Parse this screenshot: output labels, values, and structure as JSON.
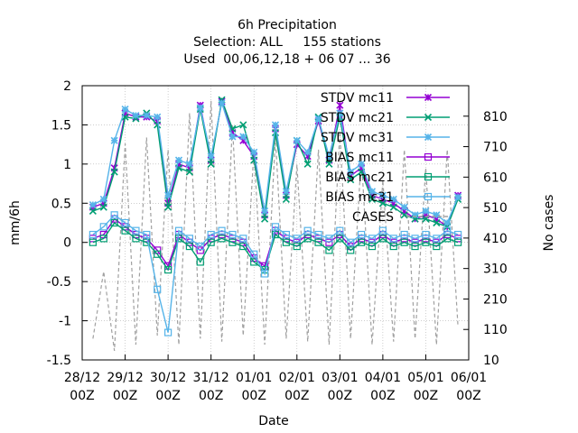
{
  "chart_data": {
    "type": "line",
    "title_lines": [
      "6h Precipitation",
      "Selection: ALL     155 stations",
      "Used  00,06,12,18 + 06 07 ... 36"
    ],
    "xlabel": "Date",
    "ylabel": "mm/6h",
    "y2label": "No cases",
    "x_ticks": [
      {
        "top": "28/12",
        "bottom": "00Z"
      },
      {
        "top": "29/12",
        "bottom": "00Z"
      },
      {
        "top": "30/12",
        "bottom": "00Z"
      },
      {
        "top": "31/12",
        "bottom": "00Z"
      },
      {
        "top": "01/01",
        "bottom": "00Z"
      },
      {
        "top": "02/01",
        "bottom": "00Z"
      },
      {
        "top": "03/01",
        "bottom": "00Z"
      },
      {
        "top": "04/01",
        "bottom": "00Z"
      },
      {
        "top": "05/01",
        "bottom": "00Z"
      },
      {
        "top": "06/01",
        "bottom": "00Z"
      }
    ],
    "y_ticks": [
      "-1.5",
      "-1",
      "-0.5",
      "0",
      "0.5",
      "1",
      "1.5",
      "2"
    ],
    "y2_ticks": [
      "10",
      "110",
      "210",
      "310",
      "410",
      "510",
      "610",
      "710",
      "810"
    ],
    "ylim": [
      -1.5,
      2
    ],
    "y2lim": [
      10,
      910
    ],
    "xlim": [
      0,
      9
    ],
    "grid": true,
    "legend_position": "top-right",
    "colors": {
      "mc11": "#9400d3",
      "mc21": "#009e73",
      "mc31": "#56b4e9",
      "cases": "#a0a0a0"
    },
    "series": [
      {
        "name": "STDV mc11",
        "key": "mc11",
        "marker": "star",
        "axis": "y",
        "x": [
          0.25,
          0.5,
          0.75,
          1.0,
          1.25,
          1.5,
          1.75,
          2.0,
          2.25,
          2.5,
          2.75,
          3.0,
          3.25,
          3.5,
          3.75,
          4.0,
          4.25,
          4.5,
          4.75,
          5.0,
          5.25,
          5.5,
          5.75,
          6.0,
          6.25,
          6.5,
          6.75,
          7.0,
          7.25,
          7.5,
          7.75,
          8.0,
          8.25,
          8.5,
          8.75
        ],
        "y": [
          0.45,
          0.5,
          0.95,
          1.65,
          1.6,
          1.6,
          1.55,
          0.5,
          1.0,
          0.95,
          1.75,
          1.05,
          1.8,
          1.4,
          1.3,
          1.1,
          0.35,
          1.45,
          0.6,
          1.25,
          1.1,
          1.55,
          1.05,
          1.75,
          0.85,
          0.95,
          0.6,
          0.55,
          0.5,
          0.4,
          0.3,
          0.35,
          0.3,
          0.2,
          0.6
        ]
      },
      {
        "name": "STDV mc21",
        "key": "mc21",
        "marker": "x",
        "axis": "y",
        "x": [
          0.25,
          0.5,
          0.75,
          1.0,
          1.25,
          1.5,
          1.75,
          2.0,
          2.25,
          2.5,
          2.75,
          3.0,
          3.25,
          3.5,
          3.75,
          4.0,
          4.25,
          4.5,
          4.75,
          5.0,
          5.25,
          5.5,
          5.75,
          6.0,
          6.25,
          6.5,
          6.75,
          7.0,
          7.25,
          7.5,
          7.75,
          8.0,
          8.25,
          8.5,
          8.75
        ],
        "y": [
          0.4,
          0.45,
          0.9,
          1.6,
          1.58,
          1.65,
          1.5,
          0.45,
          0.95,
          0.9,
          1.7,
          1.0,
          1.82,
          1.45,
          1.5,
          1.05,
          0.3,
          1.4,
          0.55,
          1.3,
          1.0,
          1.6,
          1.0,
          1.6,
          0.8,
          0.9,
          0.55,
          0.5,
          0.45,
          0.35,
          0.3,
          0.3,
          0.25,
          0.2,
          0.55
        ]
      },
      {
        "name": "STDV mc31",
        "key": "mc31",
        "marker": "asterisk",
        "axis": "y",
        "x": [
          0.25,
          0.5,
          0.75,
          1.0,
          1.25,
          1.5,
          1.75,
          2.0,
          2.25,
          2.5,
          2.75,
          3.0,
          3.25,
          3.5,
          3.75,
          4.0,
          4.25,
          4.5,
          4.75,
          5.0,
          5.25,
          5.5,
          5.75,
          6.0,
          6.25,
          6.5,
          6.75,
          7.0,
          7.25,
          7.5,
          7.75,
          8.0,
          8.25,
          8.5,
          8.75
        ],
        "y": [
          0.48,
          0.55,
          1.3,
          1.7,
          1.62,
          1.62,
          1.6,
          0.6,
          1.05,
          1.0,
          1.72,
          1.1,
          1.78,
          1.35,
          1.35,
          1.15,
          0.4,
          1.5,
          0.65,
          1.3,
          1.15,
          1.58,
          1.1,
          1.65,
          0.9,
          1.0,
          0.65,
          0.6,
          0.55,
          0.45,
          0.35,
          0.4,
          0.35,
          0.25,
          0.58
        ]
      },
      {
        "name": "BIAS mc11",
        "key": "mc11",
        "marker": "square",
        "axis": "y",
        "x": [
          0.25,
          0.5,
          0.75,
          1.0,
          1.25,
          1.5,
          1.75,
          2.0,
          2.25,
          2.5,
          2.75,
          3.0,
          3.25,
          3.5,
          3.75,
          4.0,
          4.25,
          4.5,
          4.75,
          5.0,
          5.25,
          5.5,
          5.75,
          6.0,
          6.25,
          6.5,
          6.75,
          7.0,
          7.25,
          7.5,
          7.75,
          8.0,
          8.25,
          8.5,
          8.75
        ],
        "y": [
          0.05,
          0.1,
          0.3,
          0.2,
          0.1,
          0.05,
          -0.1,
          -0.3,
          0.1,
          0.0,
          -0.1,
          0.05,
          0.1,
          0.05,
          0.0,
          -0.2,
          -0.3,
          0.15,
          0.05,
          0.0,
          0.1,
          0.05,
          0.0,
          0.1,
          -0.05,
          0.05,
          0.0,
          0.1,
          0.0,
          0.05,
          0.0,
          0.05,
          0.0,
          0.1,
          0.05
        ]
      },
      {
        "name": "BIAS mc21",
        "key": "mc21",
        "marker": "square",
        "axis": "y",
        "x": [
          0.25,
          0.5,
          0.75,
          1.0,
          1.25,
          1.5,
          1.75,
          2.0,
          2.25,
          2.5,
          2.75,
          3.0,
          3.25,
          3.5,
          3.75,
          4.0,
          4.25,
          4.5,
          4.75,
          5.0,
          5.25,
          5.5,
          5.75,
          6.0,
          6.25,
          6.5,
          6.75,
          7.0,
          7.25,
          7.5,
          7.75,
          8.0,
          8.25,
          8.5,
          8.75
        ],
        "y": [
          0.0,
          0.05,
          0.25,
          0.15,
          0.05,
          0.0,
          -0.15,
          -0.35,
          0.05,
          -0.05,
          -0.25,
          0.0,
          0.05,
          0.0,
          -0.05,
          -0.25,
          -0.35,
          0.1,
          0.0,
          -0.05,
          0.05,
          0.0,
          -0.1,
          0.05,
          -0.1,
          0.0,
          -0.05,
          0.05,
          -0.05,
          0.0,
          -0.05,
          0.0,
          -0.05,
          0.05,
          0.0
        ]
      },
      {
        "name": "BIAS mc31",
        "key": "mc31",
        "marker": "square",
        "axis": "y",
        "x": [
          0.25,
          0.5,
          0.75,
          1.0,
          1.25,
          1.5,
          1.75,
          2.0,
          2.25,
          2.5,
          2.75,
          3.0,
          3.25,
          3.5,
          3.75,
          4.0,
          4.25,
          4.5,
          4.75,
          5.0,
          5.25,
          5.5,
          5.75,
          6.0,
          6.25,
          6.5,
          6.75,
          7.0,
          7.25,
          7.5,
          7.75,
          8.0,
          8.25,
          8.5,
          8.75
        ],
        "y": [
          0.1,
          0.2,
          0.35,
          0.25,
          0.15,
          0.1,
          -0.6,
          -1.15,
          0.15,
          0.05,
          -0.05,
          0.1,
          0.15,
          0.1,
          0.05,
          -0.15,
          -0.4,
          0.2,
          0.1,
          0.05,
          0.15,
          0.1,
          0.05,
          0.15,
          0.0,
          0.1,
          0.05,
          0.15,
          0.05,
          0.1,
          0.05,
          0.1,
          0.05,
          0.15,
          0.1
        ]
      },
      {
        "name": "CASES",
        "key": "cases",
        "marker": "none",
        "dashed": true,
        "axis": "y2",
        "x": [
          0.25,
          0.5,
          0.75,
          1.0,
          1.25,
          1.5,
          1.75,
          2.0,
          2.25,
          2.5,
          2.75,
          3.0,
          3.25,
          3.5,
          3.75,
          4.0,
          4.25,
          4.5,
          4.75,
          5.0,
          5.25,
          5.5,
          5.75,
          6.0,
          6.25,
          6.5,
          6.75,
          7.0,
          7.25,
          7.5,
          7.75,
          8.0,
          8.25,
          8.5,
          8.75
        ],
        "y": [
          80,
          300,
          40,
          720,
          60,
          740,
          90,
          700,
          60,
          820,
          80,
          860,
          70,
          780,
          90,
          700,
          60,
          740,
          80,
          650,
          70,
          700,
          60,
          760,
          80,
          680,
          60,
          600,
          70,
          700,
          80,
          640,
          60,
          700,
          120
        ]
      }
    ]
  }
}
